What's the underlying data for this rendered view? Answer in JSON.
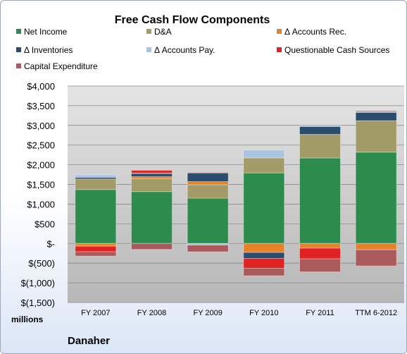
{
  "chart_data": {
    "type": "bar",
    "stacked": true,
    "title": "Free Cash Flow Components",
    "units_label": "millions",
    "company": "Danaher",
    "categories": [
      "FY 2007",
      "FY 2008",
      "FY 2009",
      "FY 2010",
      "FY 2011",
      "TTM 6-2012"
    ],
    "y_ticks": [
      "$4,000",
      "$3,500",
      "$3,000",
      "$2,500",
      "$2,000",
      "$1,500",
      "$1,000",
      "$500",
      "$-",
      "$(500)",
      "$(1,000)",
      "$(1,500)"
    ],
    "ylim": [
      -1500,
      4000
    ],
    "legend_position": "top",
    "series": [
      {
        "name": "Net Income",
        "color": "#2e8b4e",
        "values": [
          1370,
          1318,
          1152,
          1793,
          2172,
          2320
        ]
      },
      {
        "name": "D&A",
        "color": "#a39b67",
        "values": [
          270,
          330,
          340,
          380,
          600,
          800
        ]
      },
      {
        "name": "Δ Accounts Rec.",
        "color": "#e8822a",
        "values": [
          -70,
          50,
          80,
          -230,
          -120,
          -160
        ]
      },
      {
        "name": "Δ Inventories",
        "color": "#2a4d6e",
        "values": [
          40,
          80,
          220,
          -150,
          200,
          210
        ]
      },
      {
        "name": "Δ Accounts Pay.",
        "color": "#a8c4e0",
        "values": [
          60,
          10,
          -40,
          200,
          20,
          20
        ]
      },
      {
        "name": "Questionable Cash Sources",
        "color": "#e02222",
        "values": [
          -140,
          70,
          10,
          -250,
          -270,
          20
        ]
      },
      {
        "name": "Capital Expenditure",
        "color": "#a95a5a",
        "values": [
          -110,
          -150,
          -170,
          -190,
          -330,
          -410
        ]
      }
    ]
  }
}
